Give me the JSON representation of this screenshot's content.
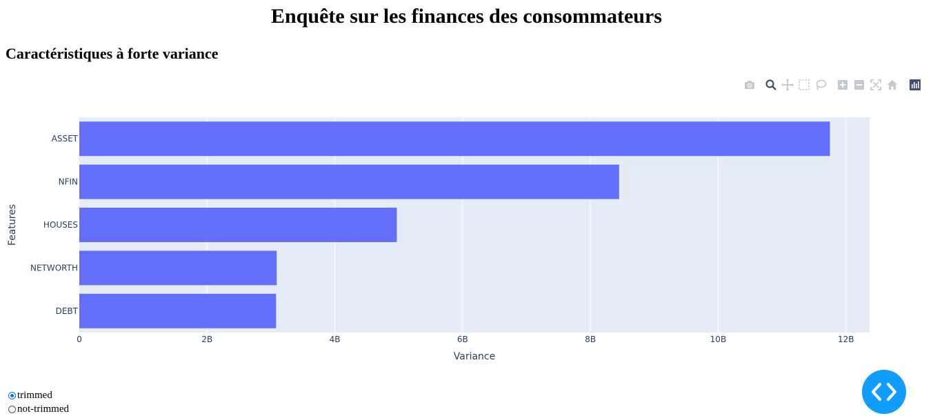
{
  "page": {
    "title": "Enquête sur les finances des consommateurs",
    "section_title": "Caractéristiques à forte variance"
  },
  "modebar": {
    "icons": [
      "camera-icon",
      "zoom-icon",
      "pan-icon",
      "box-select-icon",
      "lasso-select-icon",
      "zoom-in-icon",
      "zoom-out-icon",
      "autoscale-icon",
      "reset-axes-icon",
      "plotly-logo-icon"
    ]
  },
  "chart_data": {
    "type": "bar",
    "orientation": "horizontal",
    "categories": [
      "ASSET",
      "NFIN",
      "HOUSES",
      "NETWORTH",
      "DEBT"
    ],
    "values": [
      11.75,
      8.45,
      4.97,
      3.09,
      3.08
    ],
    "value_unit": "B",
    "xlabel": "Variance",
    "ylabel": "Features",
    "x_ticks": [
      "0",
      "2B",
      "4B",
      "6B",
      "8B",
      "10B",
      "12B"
    ],
    "x_tick_values": [
      0,
      2,
      4,
      6,
      8,
      10,
      12
    ],
    "xlim": [
      0,
      12.37
    ],
    "grid": true,
    "bar_color": "#636efa",
    "plot_bg": "#e5ecf6"
  },
  "controls": {
    "options": [
      {
        "label": "trimmed",
        "checked": true
      },
      {
        "label": "not-trimmed",
        "checked": false
      }
    ]
  },
  "colors": {
    "fab": "#119dff",
    "axis_text": "#2a3f5f"
  }
}
